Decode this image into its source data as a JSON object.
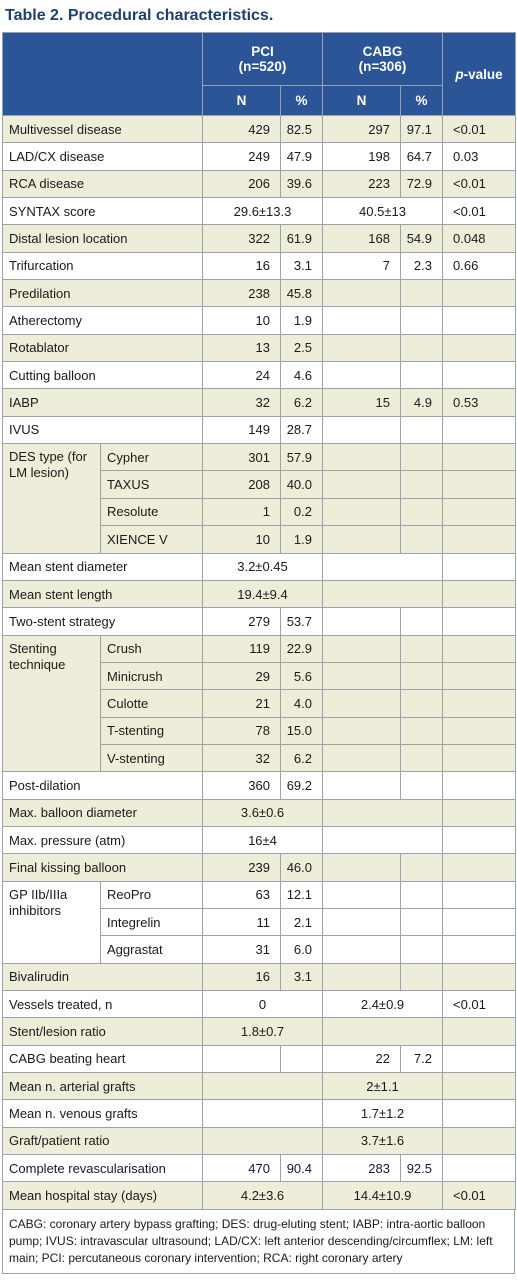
{
  "title": "Table 2. Procedural characteristics.",
  "header": {
    "pci_label": "PCI",
    "pci_n": "(n=520)",
    "cabg_label": "CABG",
    "cabg_n": "(n=306)",
    "p_italic": "p",
    "p_rest": "-value",
    "sub": [
      "N",
      "%",
      "N",
      "%"
    ]
  },
  "rows": [
    {
      "type": "single",
      "label": "Multivessel disease",
      "v": [
        "429",
        "82.5",
        "297",
        "97.1"
      ],
      "p": "<0.01"
    },
    {
      "type": "single",
      "label": "LAD/CX disease",
      "v": [
        "249",
        "47.9",
        "198",
        "64.7"
      ],
      "p": "0.03"
    },
    {
      "type": "single",
      "label": "RCA disease",
      "v": [
        "206",
        "39.6",
        "223",
        "72.9"
      ],
      "p": "<0.01"
    },
    {
      "type": "span",
      "label": "SYNTAX score",
      "pci": "29.6±13.3",
      "cabg": "40.5±13",
      "p": "<0.01"
    },
    {
      "type": "single",
      "label": "Distal lesion location",
      "v": [
        "322",
        "61.9",
        "168",
        "54.9"
      ],
      "p": "0.048"
    },
    {
      "type": "single",
      "label": "Trifurcation",
      "v": [
        "16",
        "3.1",
        "7",
        "2.3"
      ],
      "p": "0.66"
    },
    {
      "type": "single",
      "label": "Predilation",
      "v": [
        "238",
        "45.8",
        "",
        ""
      ],
      "p": ""
    },
    {
      "type": "single",
      "label": "Atherectomy",
      "v": [
        "10",
        "1.9",
        "",
        ""
      ],
      "p": ""
    },
    {
      "type": "single",
      "label": "Rotablator",
      "v": [
        "13",
        "2.5",
        "",
        ""
      ],
      "p": ""
    },
    {
      "type": "single",
      "label": "Cutting balloon",
      "v": [
        "24",
        "4.6",
        "",
        ""
      ],
      "p": ""
    },
    {
      "type": "single",
      "label": "IABP",
      "v": [
        "32",
        "6.2",
        "15",
        "4.9"
      ],
      "p": "0.53"
    },
    {
      "type": "single",
      "label": "IVUS",
      "v": [
        "149",
        "28.7",
        "",
        ""
      ],
      "p": ""
    },
    {
      "type": "group",
      "label": "DES type (for LM lesion)",
      "items": [
        {
          "sub": "Cypher",
          "v": [
            "301",
            "57.9",
            "",
            ""
          ],
          "p": ""
        },
        {
          "sub": "TAXUS",
          "v": [
            "208",
            "40.0",
            "",
            ""
          ],
          "p": ""
        },
        {
          "sub": "Resolute",
          "v": [
            "1",
            "0.2",
            "",
            ""
          ],
          "p": ""
        },
        {
          "sub": "XIENCE V",
          "v": [
            "10",
            "1.9",
            "",
            ""
          ],
          "p": ""
        }
      ]
    },
    {
      "type": "span",
      "label": "Mean stent diameter",
      "pci": "3.2±0.45",
      "cabg": "",
      "p": ""
    },
    {
      "type": "span",
      "label": "Mean stent length",
      "pci": "19.4±9.4",
      "cabg": "",
      "p": ""
    },
    {
      "type": "single",
      "label": "Two-stent strategy",
      "v": [
        "279",
        "53.7",
        "",
        ""
      ],
      "p": ""
    },
    {
      "type": "group",
      "label": "Stenting technique",
      "items": [
        {
          "sub": "Crush",
          "v": [
            "119",
            "22.9",
            "",
            ""
          ],
          "p": ""
        },
        {
          "sub": "Minicrush",
          "v": [
            "29",
            "5.6",
            "",
            ""
          ],
          "p": ""
        },
        {
          "sub": "Culotte",
          "v": [
            "21",
            "4.0",
            "",
            ""
          ],
          "p": ""
        },
        {
          "sub": "T-stenting",
          "v": [
            "78",
            "15.0",
            "",
            ""
          ],
          "p": ""
        },
        {
          "sub": "V-stenting",
          "v": [
            "32",
            "6.2",
            "",
            ""
          ],
          "p": ""
        }
      ]
    },
    {
      "type": "single",
      "label": "Post-dilation",
      "v": [
        "360",
        "69.2",
        "",
        ""
      ],
      "p": ""
    },
    {
      "type": "span",
      "label": "Max. balloon diameter",
      "pci": "3.6±0.6",
      "cabg": "",
      "p": ""
    },
    {
      "type": "span",
      "label": "Max. pressure (atm)",
      "pci": "16±4",
      "cabg": "",
      "p": ""
    },
    {
      "type": "single",
      "label": "Final kissing balloon",
      "v": [
        "239",
        "46.0",
        "",
        ""
      ],
      "p": ""
    },
    {
      "type": "group",
      "label": "GP IIb/IIIa inhibitors",
      "items": [
        {
          "sub": "ReoPro",
          "v": [
            "63",
            "12.1",
            "",
            ""
          ],
          "p": ""
        },
        {
          "sub": "Integrelin",
          "v": [
            "11",
            "2.1",
            "",
            ""
          ],
          "p": ""
        },
        {
          "sub": "Aggrastat",
          "v": [
            "31",
            "6.0",
            "",
            ""
          ],
          "p": ""
        }
      ]
    },
    {
      "type": "single",
      "label": "Bivalirudin",
      "v": [
        "16",
        "3.1",
        "",
        ""
      ],
      "p": ""
    },
    {
      "type": "span",
      "label": "Vessels treated, n",
      "pci": "0",
      "cabg": "2.4±0.9",
      "p": "<0.01"
    },
    {
      "type": "span",
      "label": "Stent/lesion ratio",
      "pci": "1.8±0.7",
      "cabg": "",
      "p": ""
    },
    {
      "type": "single",
      "label": "CABG beating heart",
      "v": [
        "",
        "",
        "22",
        "7.2"
      ],
      "p": ""
    },
    {
      "type": "span",
      "label": "Mean n. arterial grafts",
      "pci": "",
      "cabg": "2±1.1",
      "p": ""
    },
    {
      "type": "span",
      "label": "Mean n. venous grafts",
      "pci": "",
      "cabg": "1.7±1.2",
      "p": ""
    },
    {
      "type": "span",
      "label": "Graft/patient ratio",
      "pci": "",
      "cabg": "3.7±1.6",
      "p": ""
    },
    {
      "type": "single",
      "label": "Complete revascularisation",
      "v": [
        "470",
        "90.4",
        "283",
        "92.5"
      ],
      "p": ""
    },
    {
      "type": "span",
      "label": "Mean hospital stay (days)",
      "pci": "4.2±3.6",
      "cabg": "14.4±10.9",
      "p": "<0.01"
    }
  ],
  "footnote": "CABG: coronary artery bypass grafting; DES: drug-eluting stent; IABP: intra-aortic balloon pump; IVUS: intravascular ultrasound; LAD/CX: left anterior descending/circumflex; LM: left main; PCI: percutaneous coronary intervention; RCA: right coronary artery",
  "colors": {
    "header_bg": "#2b5597",
    "title": "#1f3f6e",
    "band": "#eeedda"
  }
}
